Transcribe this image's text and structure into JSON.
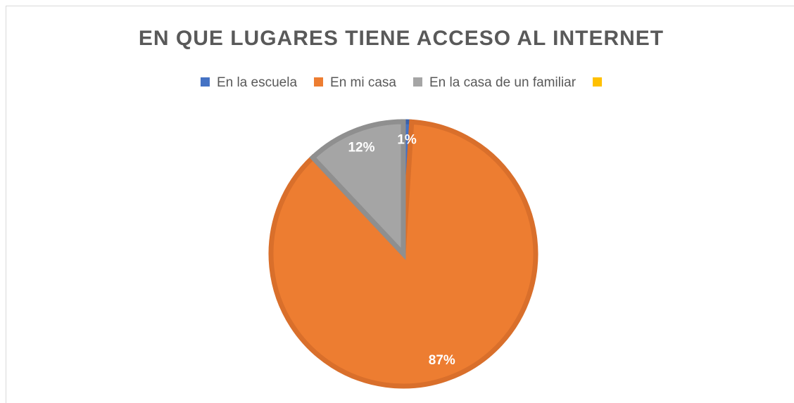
{
  "chart_data": {
    "type": "pie",
    "title": "EN QUE LUGARES TIENE ACCESO AL INTERNET",
    "categories": [
      "En la escuela",
      "En mi casa",
      "En la casa de un familiar",
      null
    ],
    "values": [
      1,
      87,
      12,
      0
    ],
    "value_labels": [
      "1%",
      "87%",
      "12%",
      null
    ],
    "colors": [
      "#4472c4",
      "#ed7d31",
      "#a5a5a5",
      "#ffc000"
    ],
    "borders": [
      "#3a62ab",
      "#d96f2b",
      "#8f8f8f",
      "#e0a800"
    ],
    "legend": "top"
  }
}
